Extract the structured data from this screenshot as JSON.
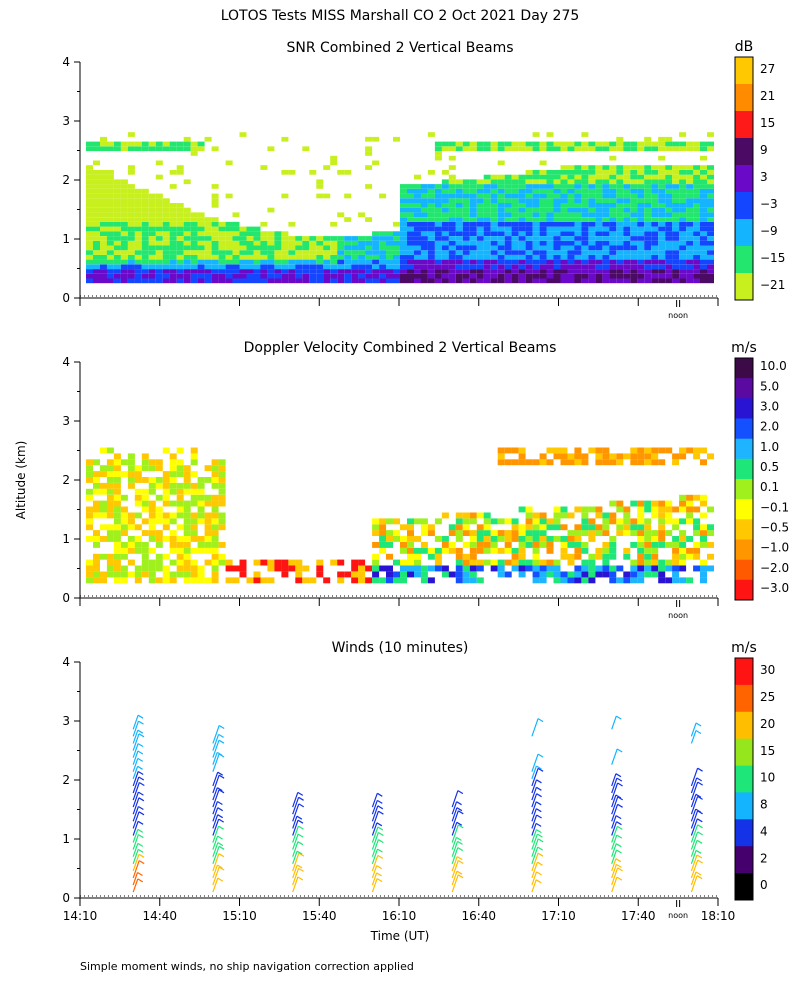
{
  "title": "LOTOS Tests MISS Marshall CO   2 Oct 2021 Day 275",
  "ylabel": "Altitude (km)",
  "xlabel": "Time (UT)",
  "footnote": "Simple moment winds, no ship navigation correction applied",
  "noon_label": "noon",
  "chart_data": [
    {
      "type": "heatmap",
      "title": "SNR Combined 2 Vertical Beams",
      "ylim": [
        0,
        4
      ],
      "yticks": [
        "0",
        "1",
        "2",
        "3",
        "4"
      ],
      "x_range": [
        "14:10",
        "18:10"
      ],
      "colorbar": {
        "unit": "dB",
        "labels": [
          "27",
          "21",
          "15",
          "9",
          "3",
          "−3",
          "−9",
          "−15",
          "−21"
        ],
        "colors": [
          "#ffc800",
          "#ff8c00",
          "#ff1a1a",
          "#4b0a64",
          "#6a0ac8",
          "#1446ff",
          "#14b4ff",
          "#22e66e",
          "#c8f01e"
        ]
      }
    },
    {
      "type": "heatmap",
      "title": "Doppler Velocity Combined 2 Vertical Beams",
      "ylim": [
        0,
        4
      ],
      "yticks": [
        "0",
        "1",
        "2",
        "3",
        "4"
      ],
      "x_range": [
        "14:10",
        "18:10"
      ],
      "colorbar": {
        "unit": "m/s",
        "labels": [
          "10.0",
          "5.0",
          "3.0",
          "2.0",
          "1.0",
          "0.5",
          "0.1",
          "−0.1",
          "−0.5",
          "−1.0",
          "−2.0",
          "−3.0"
        ],
        "colors": [
          "#3c0a46",
          "#5a0aa0",
          "#2814d2",
          "#1450ff",
          "#1eb4ff",
          "#1ee678",
          "#a0f01e",
          "#ffff00",
          "#ffc800",
          "#ff9600",
          "#ff5a00",
          "#ff1414"
        ]
      }
    },
    {
      "type": "scatter",
      "title": "Winds (10 minutes)",
      "ylim": [
        0,
        4
      ],
      "yticks": [
        "0",
        "1",
        "2",
        "3",
        "4"
      ],
      "xticks": [
        "14:10",
        "14:40",
        "15:10",
        "15:40",
        "16:10",
        "16:40",
        "17:10",
        "17:40",
        "18:10"
      ],
      "colorbar": {
        "unit": "m/s",
        "labels": [
          "30",
          "25",
          "20",
          "15",
          "10",
          "8",
          "4",
          "2",
          "0"
        ],
        "colors": [
          "#ff1414",
          "#ff6400",
          "#ffbe00",
          "#96e61e",
          "#1ee678",
          "#14b4ff",
          "#1432e6",
          "#46006e",
          "#000000"
        ]
      },
      "profile_times": [
        "14:30",
        "15:00",
        "15:30",
        "16:00",
        "16:30",
        "17:00",
        "17:30",
        "18:00"
      ]
    }
  ]
}
